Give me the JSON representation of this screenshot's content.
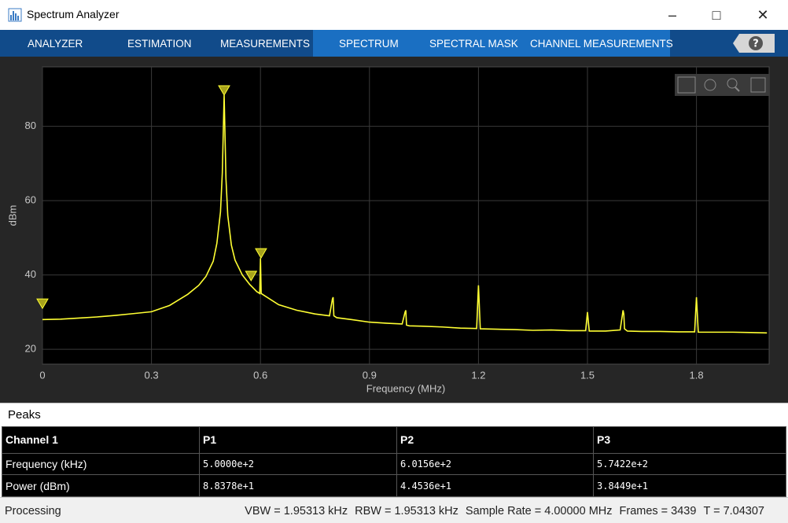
{
  "window": {
    "title": "Spectrum Analyzer"
  },
  "tabs": [
    "ANALYZER",
    "ESTIMATION",
    "MEASUREMENTS",
    "SPECTRUM",
    "SPECTRAL MASK",
    "CHANNEL MEASUREMENTS"
  ],
  "chart_data": {
    "type": "line",
    "xlabel": "Frequency (MHz)",
    "ylabel": "dBm",
    "x": [
      0,
      0.05,
      0.1,
      0.15,
      0.2,
      0.25,
      0.3,
      0.35,
      0.4,
      0.43,
      0.45,
      0.47,
      0.48,
      0.49,
      0.495,
      0.5,
      0.505,
      0.51,
      0.52,
      0.53,
      0.55,
      0.57,
      0.59,
      0.598,
      0.6,
      0.602,
      0.61,
      0.65,
      0.7,
      0.75,
      0.79,
      0.798,
      0.8,
      0.802,
      0.81,
      0.85,
      0.9,
      0.95,
      0.99,
      0.998,
      1.0,
      1.002,
      1.01,
      1.05,
      1.1,
      1.15,
      1.195,
      1.2,
      1.205,
      1.25,
      1.3,
      1.35,
      1.4,
      1.45,
      1.495,
      1.5,
      1.505,
      1.55,
      1.59,
      1.598,
      1.6,
      1.602,
      1.61,
      1.65,
      1.7,
      1.75,
      1.795,
      1.8,
      1.805,
      1.85,
      1.9,
      1.95,
      1.994
    ],
    "values": [
      28,
      28.1,
      28.4,
      28.7,
      29.1,
      29.6,
      30.1,
      31.8,
      34.8,
      37.2,
      39.6,
      43.7,
      48.5,
      57,
      67.5,
      88.4,
      66,
      56,
      48,
      44,
      40,
      37.5,
      35.5,
      35,
      44.5,
      35,
      34.5,
      32,
      30.5,
      29.5,
      29,
      33.5,
      34,
      29,
      28.5,
      28,
      27.3,
      27,
      26.8,
      30,
      30.5,
      26.5,
      26.3,
      26.2,
      26,
      25.7,
      25.6,
      37.2,
      25.5,
      25.4,
      25.3,
      25.1,
      25.2,
      25,
      25,
      30,
      24.9,
      24.9,
      25.2,
      30.5,
      29.5,
      25.5,
      24.9,
      24.8,
      24.8,
      24.7,
      24.7,
      34,
      24.6,
      24.6,
      24.6,
      24.5,
      24.4
    ],
    "color": "#ffff33",
    "markers": {
      "x": [
        0,
        0.5,
        0.57422,
        0.60156
      ],
      "values": [
        31,
        88.378,
        38.449,
        44.536
      ],
      "color": "#a8a31c"
    },
    "xlim": [
      0,
      2
    ],
    "ylim": [
      16,
      96
    ],
    "xticks": [
      0,
      0.3,
      0.6,
      0.9,
      1.2,
      1.5,
      1.8
    ],
    "yticks": [
      20,
      40,
      60,
      80
    ],
    "grid": true
  },
  "peaks": {
    "title": "Peaks",
    "header": [
      "Channel 1",
      "P1",
      "P2",
      "P3"
    ],
    "rows": [
      [
        "Frequency (kHz)",
        "5.0000e+2",
        "6.0156e+2",
        "5.7422e+2"
      ],
      [
        "Power (dBm)",
        "8.8378e+1",
        "4.4536e+1",
        "3.8449e+1"
      ]
    ]
  },
  "status": {
    "left": "Processing",
    "items": [
      "VBW = 1.95313 kHz",
      "RBW = 1.95313 kHz",
      "Sample Rate = 4.00000 MHz",
      "Frames = 3439",
      "T = 7.04307"
    ]
  }
}
